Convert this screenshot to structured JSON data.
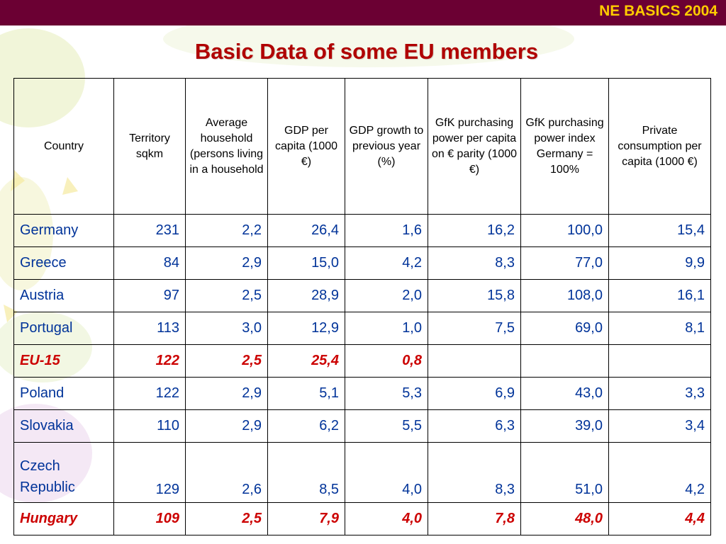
{
  "header": {
    "brand": "NE BASICS 2004"
  },
  "title": "Basic Data of some EU members",
  "table": {
    "headers": [
      "Country",
      "Territory sqkm",
      "Average household (persons living in a household",
      "GDP per capita (1000 €)",
      "GDP growth to previous year (%)",
      "GfK purchasing power per capita on € parity (1000 €)",
      "GfK purchasing power index Germany = 100%",
      "Private consumption per capita (1000 €)"
    ],
    "rows": [
      {
        "country": "Germany",
        "territory": "231",
        "household": "2,2",
        "gdp": "26,4",
        "growth": "1,6",
        "gfk_pp": "16,2",
        "gfk_index": "100,0",
        "consumption": "15,4"
      },
      {
        "country": "Greece",
        "territory": "84",
        "household": "2,9",
        "gdp": "15,0",
        "growth": "4,2",
        "gfk_pp": "8,3",
        "gfk_index": "77,0",
        "consumption": "9,9"
      },
      {
        "country": "Austria",
        "territory": "97",
        "household": "2,5",
        "gdp": "28,9",
        "growth": "2,0",
        "gfk_pp": "15,8",
        "gfk_index": "108,0",
        "consumption": "16,1"
      },
      {
        "country": "Portugal",
        "territory": "113",
        "household": "3,0",
        "gdp": "12,9",
        "growth": "1,0",
        "gfk_pp": "7,5",
        "gfk_index": "69,0",
        "consumption": "8,1"
      },
      {
        "country": "EU-15",
        "territory": "122",
        "household": "2,5",
        "gdp": "25,4",
        "growth": "0,8",
        "gfk_pp": "",
        "gfk_index": "",
        "consumption": ""
      },
      {
        "country": "Poland",
        "territory": "122",
        "household": "2,9",
        "gdp": "5,1",
        "growth": "5,3",
        "gfk_pp": "6,9",
        "gfk_index": "43,0",
        "consumption": "3,3"
      },
      {
        "country": "Slovakia",
        "territory": "110",
        "household": "2,9",
        "gdp": "6,2",
        "growth": "5,5",
        "gfk_pp": "6,3",
        "gfk_index": "39,0",
        "consumption": "3,4"
      },
      {
        "country_line1": "Czech",
        "country_line2": "Republic",
        "territory": "129",
        "household": "2,6",
        "gdp": "8,5",
        "growth": "4,0",
        "gfk_pp": "8,3",
        "gfk_index": "51,0",
        "consumption": "4,2"
      },
      {
        "country": "Hungary",
        "territory": "109",
        "household": "2,5",
        "gdp": "7,9",
        "growth": "4,0",
        "gfk_pp": "7,8",
        "gfk_index": "48,0",
        "consumption": "4,4"
      }
    ]
  },
  "colors": {
    "topbar": "#6b0033",
    "brand_text": "#ffcc00",
    "title_text": "#b00000",
    "cell_text": "#003399",
    "highlight_text": "#cc0000"
  }
}
